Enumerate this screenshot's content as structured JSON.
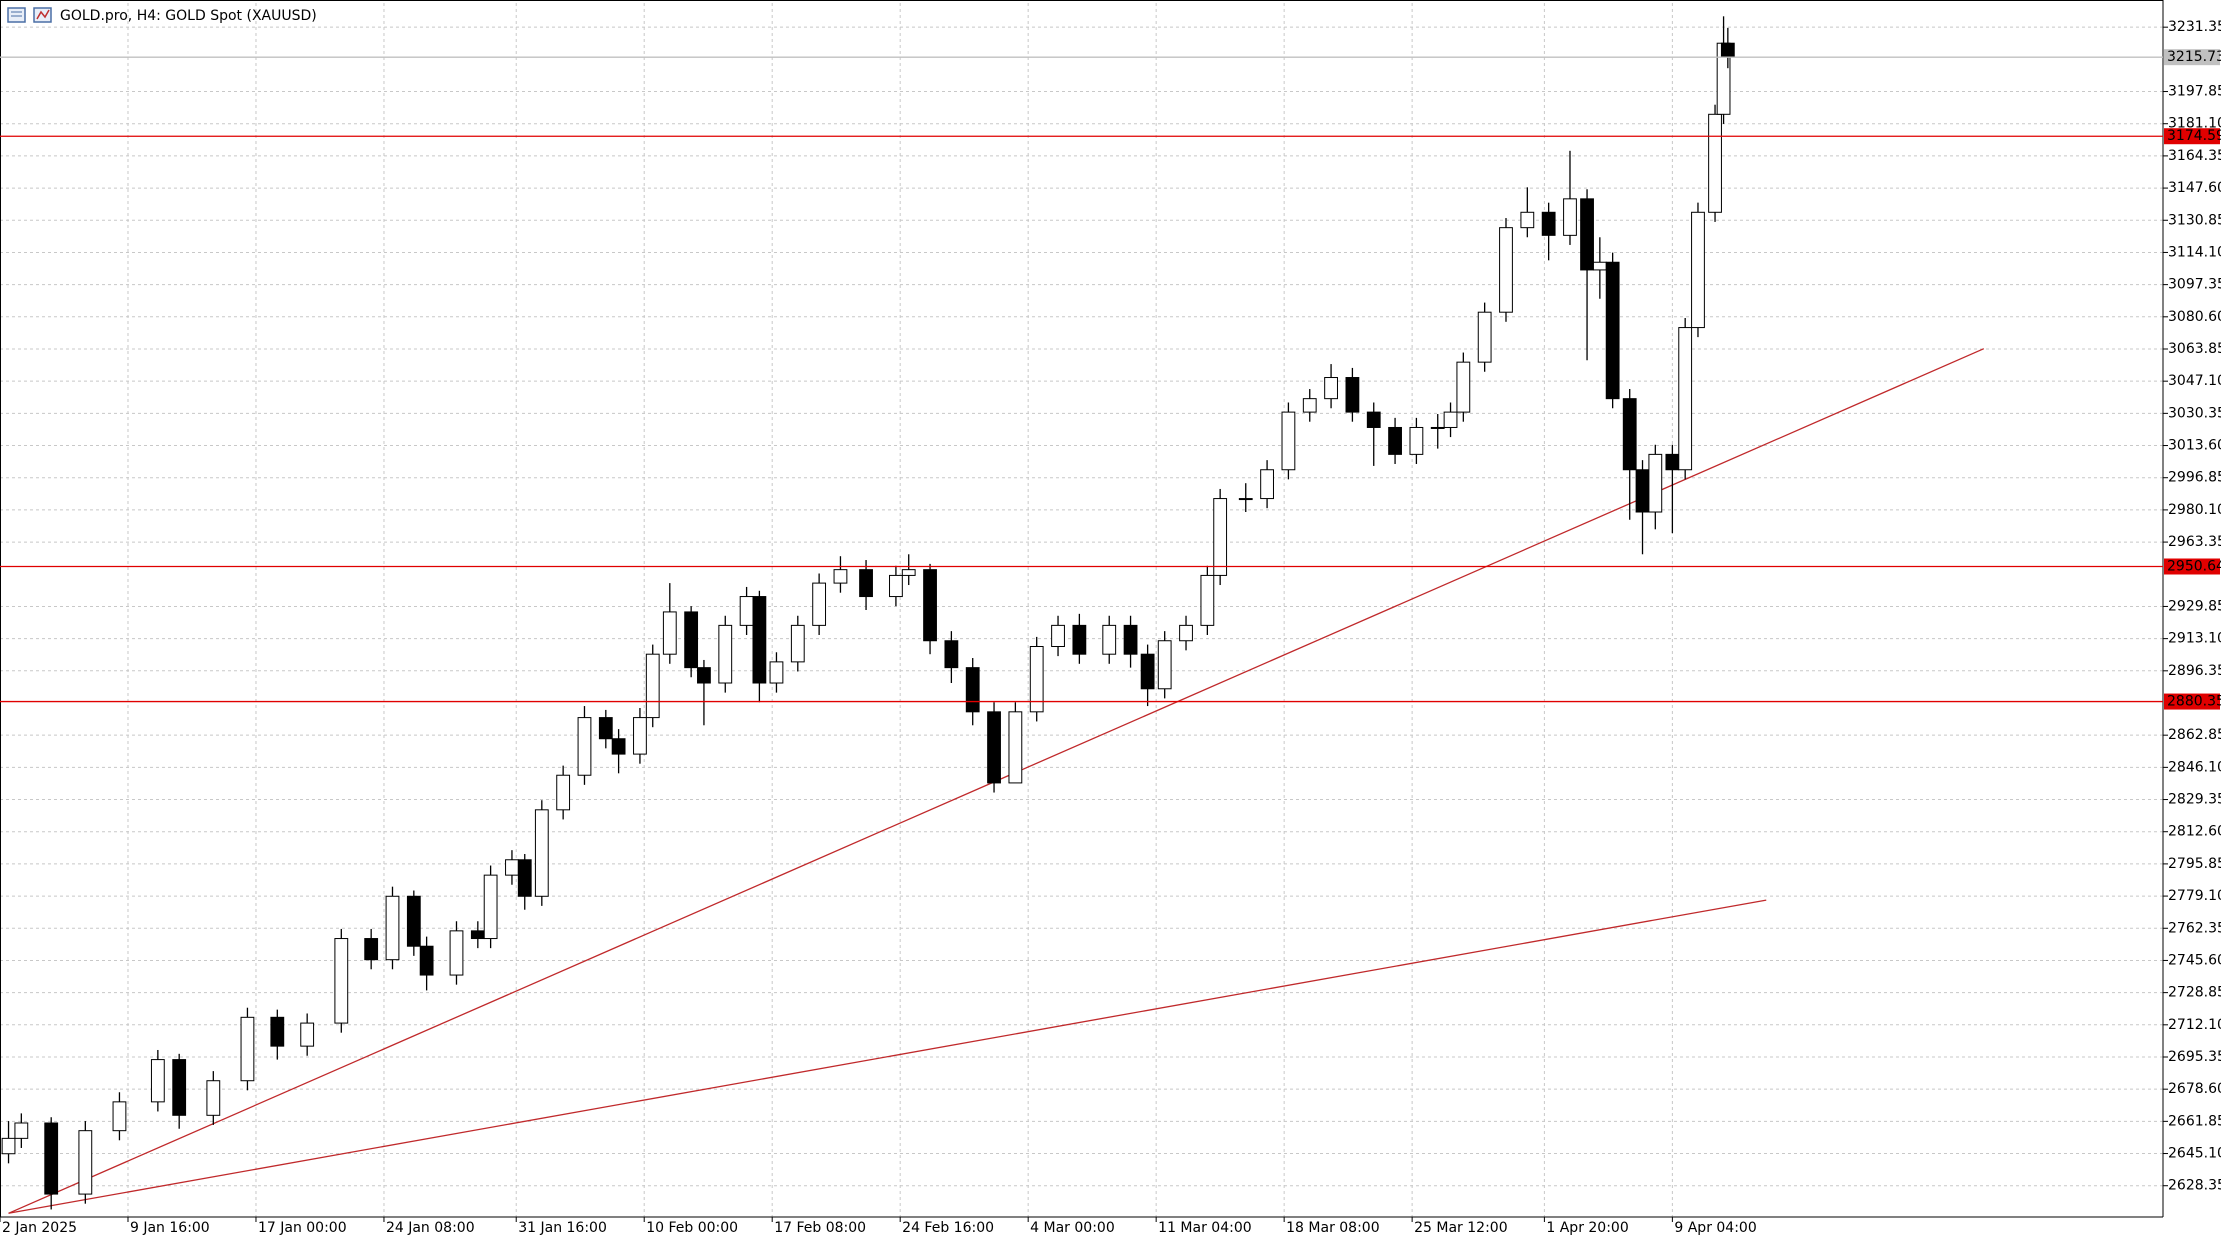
{
  "chart_data": {
    "type": "candlestick",
    "title": "GOLD.pro, H4:  GOLD Spot (XAUUSD)",
    "xlim": [
      0,
      507
    ],
    "ylim": [
      2612.07,
      3243.93
    ],
    "grid": true,
    "bull_color": "#ffffff",
    "bear_color": "#000000",
    "xticks": [
      {
        "value": 0,
        "label": "2 Jan 2025"
      },
      {
        "value": 30,
        "label": "9 Jan 16:00"
      },
      {
        "value": 60,
        "label": "17 Jan 00:00"
      },
      {
        "value": 90,
        "label": "24 Jan 08:00"
      },
      {
        "value": 121,
        "label": "31 Jan 16:00"
      },
      {
        "value": 151,
        "label": "10 Feb 00:00"
      },
      {
        "value": 181,
        "label": "17 Feb 08:00"
      },
      {
        "value": 211,
        "label": "24 Feb 16:00"
      },
      {
        "value": 241,
        "label": "4 Mar 00:00"
      },
      {
        "value": 271,
        "label": "11 Mar 04:00"
      },
      {
        "value": 301,
        "label": "18 Mar 08:00"
      },
      {
        "value": 331,
        "label": "25 Mar 12:00"
      },
      {
        "value": 362,
        "label": "1 Apr 20:00"
      },
      {
        "value": 392,
        "label": "9 Apr 04:00"
      }
    ],
    "yticks": [
      2628.35,
      {
        "value": 2645.1,
        "label": "2645.10"
      },
      2661.85,
      {
        "value": 2678.6,
        "label": "2678.60"
      },
      2695.35,
      {
        "value": 2712.1,
        "label": "2712.10"
      },
      2728.85,
      {
        "value": 2745.6,
        "label": "2745.60"
      },
      2762.35,
      {
        "value": 2779.1,
        "label": "2779.10"
      },
      2795.85,
      {
        "value": 2812.6,
        "label": "2812.60"
      },
      2829.35,
      {
        "value": 2846.1,
        "label": "2846.10"
      },
      2862.85,
      2896.35,
      {
        "value": 2913.1,
        "label": "2913.10"
      },
      2929.85,
      2963.35,
      {
        "value": 2980.1,
        "label": "2980.10"
      },
      2996.85,
      {
        "value": 3013.6,
        "label": "3013.60"
      },
      3030.35,
      {
        "value": 3047.1,
        "label": "3047.10"
      },
      3063.85,
      {
        "value": 3080.6,
        "label": "3080.60"
      },
      3097.35,
      {
        "value": 3114.1,
        "label": "3114.10"
      },
      3130.85,
      {
        "value": 3147.6,
        "label": "3147.60"
      },
      3164.35,
      {
        "value": 3181.1,
        "label": "3181.10"
      },
      3197.85,
      3231.35
    ],
    "x": [
      2,
      5,
      12,
      20,
      28,
      37,
      42,
      50,
      58,
      65,
      72,
      80,
      87,
      92,
      97,
      100,
      107,
      112,
      115,
      120,
      123,
      127,
      132,
      137,
      142,
      145,
      150,
      153,
      157,
      162,
      165,
      170,
      175,
      178,
      182,
      187,
      192,
      197,
      203,
      210,
      213,
      218,
      223,
      228,
      233,
      238,
      243,
      248,
      253,
      260,
      265,
      269,
      273,
      278,
      283,
      286,
      292,
      297,
      302,
      307,
      312,
      317,
      322,
      327,
      332,
      337,
      340,
      343,
      348,
      353,
      358,
      363,
      368,
      372,
      375,
      378,
      382,
      385,
      388,
      392,
      395,
      398,
      402,
      404,
      405
    ],
    "open": [
      2645,
      2653,
      2661,
      2624,
      2657,
      2672,
      2694,
      2665,
      2683,
      2716,
      2701,
      2713,
      2757,
      2746,
      2779,
      2753,
      2738,
      2761,
      2757,
      2790,
      2798,
      2779,
      2824,
      2842,
      2872,
      2861,
      2853,
      2872,
      2905,
      2927,
      2898,
      2890,
      2920,
      2935,
      2890,
      2901,
      2920,
      2942,
      2949,
      2935,
      2946,
      2949,
      2912,
      2898,
      2875,
      2838,
      2875,
      2909,
      2920,
      2905,
      2920,
      2905,
      2887,
      2912,
      2920,
      2946,
      2986,
      2986,
      3001,
      3031,
      3038,
      3049,
      3031,
      3023,
      3009,
      3023,
      3023,
      3031,
      3057,
      3083,
      3127,
      3135,
      3123,
      3142,
      3105,
      3109,
      3038,
      3001,
      2979,
      3009,
      3001,
      3075,
      3135,
      3186,
      3223
    ],
    "high": [
      2662,
      2666,
      2664,
      2662,
      2677,
      2699,
      2697,
      2688,
      2721,
      2720,
      2718,
      2762,
      2762,
      2784,
      2782,
      2758,
      2766,
      2766,
      2795,
      2803,
      2801,
      2829,
      2847,
      2878,
      2876,
      2866,
      2877,
      2910,
      2942,
      2930,
      2902,
      2925,
      2940,
      2938,
      2906,
      2925,
      2947,
      2956,
      2954,
      2951,
      2957,
      2952,
      2917,
      2903,
      2880,
      2880,
      2914,
      2925,
      2926,
      2925,
      2925,
      2910,
      2917,
      2925,
      2951,
      2991,
      2994,
      3006,
      3036,
      3043,
      3056,
      3054,
      3036,
      3028,
      3028,
      3030,
      3036,
      3062,
      3088,
      3132,
      3148,
      3140,
      3167,
      3147,
      3122,
      3114,
      3043,
      3006,
      3014,
      3014,
      3080,
      3140,
      3191,
      3237,
      3231
    ],
    "low": [
      2640,
      2648,
      2616,
      2619,
      2652,
      2667,
      2658,
      2660,
      2678,
      2694,
      2696,
      2708,
      2741,
      2741,
      2748,
      2730,
      2733,
      2752,
      2752,
      2785,
      2772,
      2774,
      2819,
      2837,
      2856,
      2843,
      2848,
      2867,
      2900,
      2893,
      2868,
      2885,
      2915,
      2880,
      2885,
      2896,
      2915,
      2937,
      2928,
      2930,
      2941,
      2905,
      2890,
      2868,
      2833,
      2842,
      2870,
      2904,
      2900,
      2900,
      2898,
      2878,
      2882,
      2907,
      2915,
      2941,
      2979,
      2981,
      2996,
      3026,
      3033,
      3026,
      3003,
      3004,
      3004,
      3012,
      3018,
      3026,
      3052,
      3078,
      3122,
      3110,
      3118,
      3058,
      3090,
      3033,
      2975,
      2957,
      2970,
      2968,
      2996,
      3070,
      3130,
      3181,
      3210
    ],
    "close": [
      2653,
      2661,
      2624,
      2657,
      2672,
      2694,
      2665,
      2683,
      2716,
      2701,
      2713,
      2757,
      2746,
      2779,
      2753,
      2738,
      2761,
      2757,
      2790,
      2798,
      2779,
      2824,
      2842,
      2872,
      2861,
      2853,
      2872,
      2905,
      2927,
      2898,
      2890,
      2920,
      2935,
      2890,
      2901,
      2920,
      2942,
      2949,
      2935,
      2946,
      2949,
      2912,
      2898,
      2875,
      2838,
      2875,
      2909,
      2920,
      2905,
      2920,
      2905,
      2887,
      2912,
      2920,
      2946,
      2986,
      2986,
      3001,
      3031,
      3038,
      3049,
      3031,
      3023,
      3009,
      3023,
      3023,
      3031,
      3057,
      3083,
      3127,
      3135,
      3123,
      3142,
      3105,
      3109,
      3038,
      3001,
      2979,
      3009,
      3001,
      3075,
      3135,
      3186,
      3223,
      3216
    ],
    "levels": [
      {
        "value": 3215.73,
        "color": "#c0c0c0"
      },
      {
        "value": 3174.59,
        "color": "#e00000"
      },
      {
        "value": 2950.64,
        "color": "#e00000"
      },
      {
        "value": 2880.35,
        "color": "#e00000"
      }
    ],
    "trendlines": [
      {
        "color": "#c0292b",
        "x": [
          2,
          465
        ],
        "y": [
          2614,
          3064
        ]
      },
      {
        "color": "#c0292b",
        "x": [
          2,
          414
        ],
        "y": [
          2614,
          2777
        ]
      }
    ]
  }
}
